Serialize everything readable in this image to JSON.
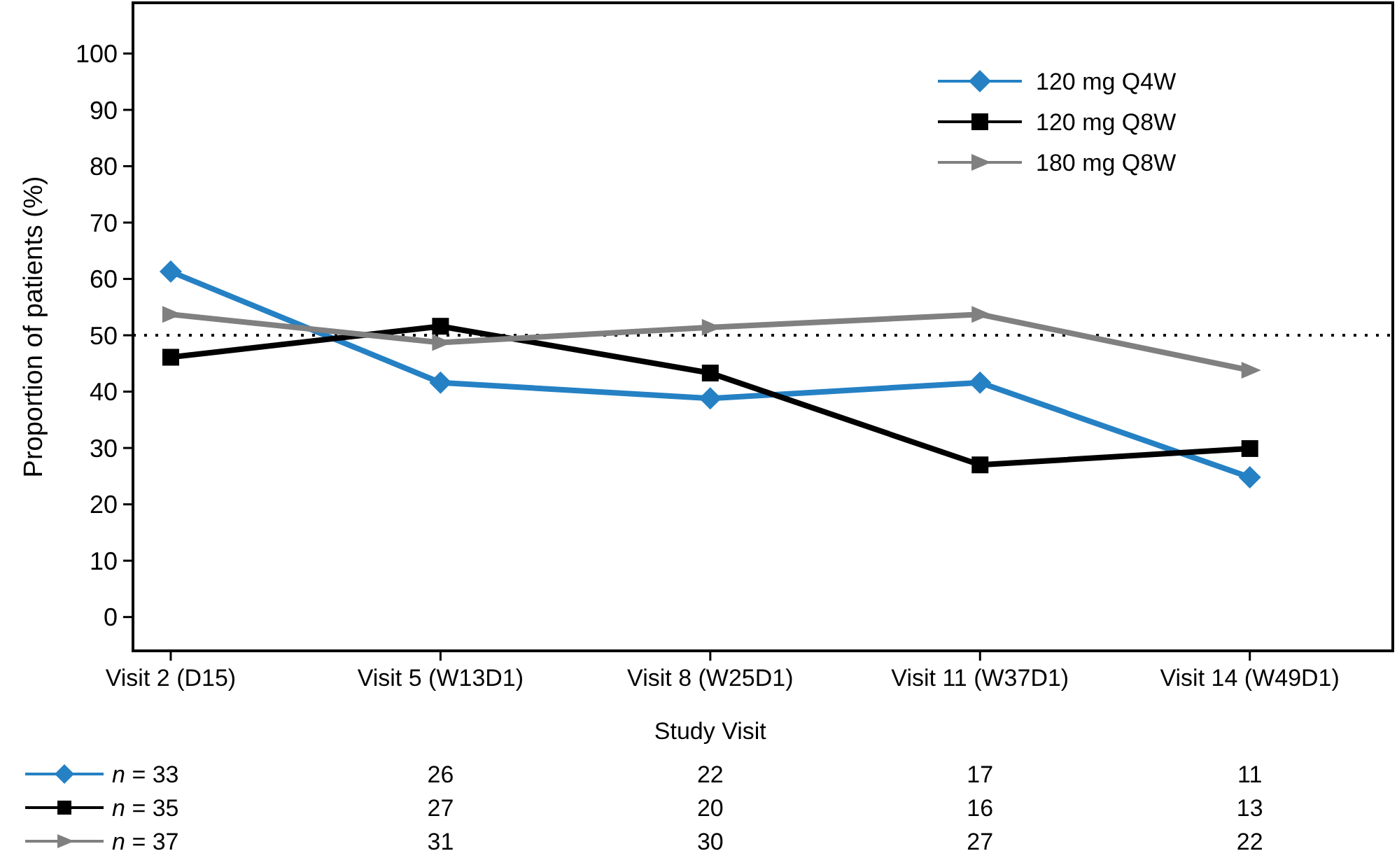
{
  "chart_data": {
    "type": "line",
    "xlabel": "Study Visit",
    "ylabel": "Proportion of patients (%)",
    "categories": [
      "Visit 2 (D15)",
      "Visit 5 (W13D1)",
      "Visit 8 (W25D1)",
      "Visit 11 (W37D1)",
      "Visit 14 (W49D1)"
    ],
    "ylim": [
      -6,
      109
    ],
    "yticks": [
      0,
      10,
      20,
      30,
      40,
      50,
      60,
      70,
      80,
      90,
      100
    ],
    "series": [
      {
        "name": "120 mg Q4W",
        "color": "#2581c4",
        "marker": "diamond",
        "values": [
          61.3,
          41.6,
          38.8,
          41.6,
          24.8
        ]
      },
      {
        "name": "120 mg Q8W",
        "color": "#000000",
        "marker": "square",
        "values": [
          46.1,
          51.6,
          43.3,
          27.0,
          29.9
        ]
      },
      {
        "name": "180 mg Q8W",
        "color": "#808080",
        "marker": "triangle",
        "values": [
          53.7,
          48.7,
          51.4,
          53.7,
          43.8
        ]
      }
    ],
    "ref_lines": [
      {
        "axis": "y",
        "value": 50,
        "line_style": "dotted",
        "color": "#000000"
      }
    ],
    "annotations": [
      "n = 33",
      "26",
      "22",
      "17",
      "11",
      "n = 35",
      "27",
      "20",
      "16",
      "13",
      "n = 37",
      "31",
      "30",
      "27",
      "22"
    ],
    "legend": "top right",
    "grid": false,
    "line_style": "solid"
  }
}
